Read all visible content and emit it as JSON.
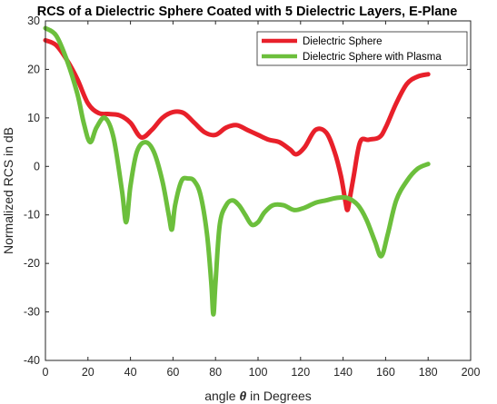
{
  "chart_data": {
    "type": "line",
    "title": "RCS of a Dielectric Sphere Coated with 5 Dielectric Layers, E-Plane",
    "xlabel_pre": "angle ",
    "xlabel_sym": "θ",
    "xlabel_post": " in Degrees",
    "ylabel": "Normalized RCS in dB",
    "xlim": [
      0,
      200
    ],
    "ylim": [
      -40,
      30
    ],
    "xticks": [
      0,
      20,
      40,
      60,
      80,
      100,
      120,
      140,
      160,
      180,
      200
    ],
    "yticks": [
      -40,
      -30,
      -20,
      -10,
      0,
      10,
      20,
      30
    ],
    "grid": false,
    "legend_position": "top-right",
    "series": [
      {
        "name": "Dielectric Sphere",
        "color": "#e8202a",
        "x": [
          0,
          5,
          10,
          15,
          20,
          25,
          30,
          35,
          40,
          45,
          50,
          55,
          60,
          65,
          70,
          75,
          80,
          85,
          90,
          95,
          100,
          105,
          110,
          115,
          118,
          122,
          127,
          132,
          136,
          139,
          141,
          142,
          143,
          145,
          148,
          152,
          157,
          160,
          165,
          170,
          175,
          180
        ],
        "y": [
          26,
          25,
          22,
          18,
          13,
          11,
          10.8,
          10.5,
          9,
          6,
          7.5,
          10,
          11.2,
          11,
          9,
          7,
          6.5,
          8,
          8.5,
          7.5,
          6.5,
          5.5,
          5,
          3.5,
          2.5,
          4,
          7.5,
          7,
          3,
          -2,
          -7,
          -9,
          -7,
          -2,
          5,
          5.5,
          6,
          8,
          13,
          17,
          18.5,
          19
        ]
      },
      {
        "name": "Dielectric Sphere with Plasma",
        "color": "#6cbf3c",
        "x": [
          0,
          5,
          10,
          15,
          18,
          21,
          24,
          28,
          32,
          36,
          38,
          40,
          43,
          47,
          51,
          55,
          58,
          59.5,
          61,
          64,
          67,
          70,
          73,
          76,
          78,
          79,
          80,
          82,
          85,
          88,
          91,
          94,
          97,
          100,
          103,
          107,
          112,
          117,
          122,
          127,
          132,
          137,
          142,
          147,
          151,
          155,
          158,
          161,
          165,
          170,
          175,
          180
        ],
        "y": [
          28.5,
          27,
          22,
          15,
          9,
          5,
          8,
          10,
          6,
          -5,
          -11.5,
          -4,
          3,
          5,
          3,
          -3,
          -10,
          -13,
          -8,
          -3,
          -2.5,
          -3,
          -6,
          -14,
          -24,
          -30.5,
          -24,
          -12,
          -8,
          -7,
          -8,
          -10,
          -12,
          -11.5,
          -9.5,
          -8,
          -8,
          -9,
          -8.5,
          -7.5,
          -7,
          -6.5,
          -6.5,
          -8,
          -11,
          -15.5,
          -18.5,
          -14,
          -7,
          -3,
          -0.5,
          0.5
        ]
      }
    ]
  }
}
